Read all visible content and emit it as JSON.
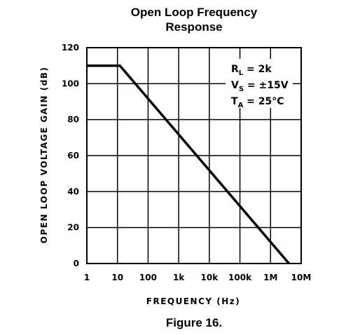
{
  "chart_data": {
    "type": "line",
    "title_line1": "Open Loop Frequency",
    "title_line2": "Response",
    "xlabel": "FREQUENCY (Hz)",
    "ylabel": "OPEN LOOP VOLTAGE GAIN (dB)",
    "x_scale": "log",
    "xlim": [
      1,
      10000000
    ],
    "ylim": [
      0,
      120
    ],
    "x_ticks": [
      {
        "value": 1,
        "label": "1"
      },
      {
        "value": 10,
        "label": "10"
      },
      {
        "value": 100,
        "label": "100"
      },
      {
        "value": 1000,
        "label": "1k"
      },
      {
        "value": 10000,
        "label": "10k"
      },
      {
        "value": 100000,
        "label": "100k"
      },
      {
        "value": 1000000,
        "label": "1M"
      },
      {
        "value": 10000000,
        "label": "10M"
      }
    ],
    "y_ticks": [
      {
        "value": 0,
        "label": "0"
      },
      {
        "value": 20,
        "label": "20"
      },
      {
        "value": 40,
        "label": "40"
      },
      {
        "value": 60,
        "label": "60"
      },
      {
        "value": 80,
        "label": "80"
      },
      {
        "value": 100,
        "label": "100"
      },
      {
        "value": 120,
        "label": "120"
      }
    ],
    "grid": true,
    "series": [
      {
        "x": [
          1,
          12,
          4000000
        ],
        "y": [
          110,
          110,
          0
        ]
      }
    ],
    "annotations": [
      {
        "main": "R",
        "sub": "L",
        "rest": " = 2k"
      },
      {
        "main": "V",
        "sub": "S",
        "rest": " = ±15V"
      },
      {
        "main": "T",
        "sub": "A",
        "rest": " = 25°C"
      }
    ],
    "annotation_position": "top-right",
    "caption": "Figure 16."
  }
}
